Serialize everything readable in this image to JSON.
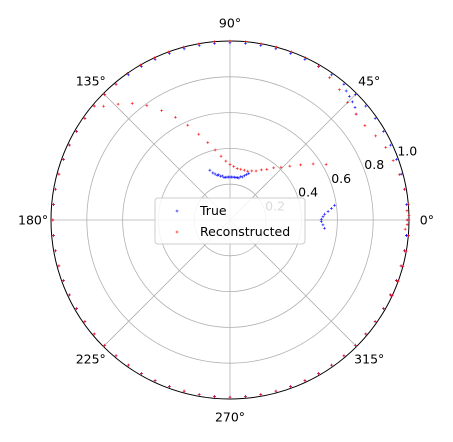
{
  "chart_data": {
    "type": "scatter",
    "projection": "polar",
    "title": "",
    "rlim": [
      0,
      1.0
    ],
    "radial_ticks": [
      {
        "value": 0.2,
        "label": "0.2"
      },
      {
        "value": 0.4,
        "label": "0.4"
      },
      {
        "value": 0.6,
        "label": "0.6"
      },
      {
        "value": 0.8,
        "label": "0.8"
      },
      {
        "value": 1.0,
        "label": "1.0"
      }
    ],
    "angular_ticks": [
      {
        "deg": 0,
        "label": "0°"
      },
      {
        "deg": 45,
        "label": "45°"
      },
      {
        "deg": 90,
        "label": "90°"
      },
      {
        "deg": 135,
        "label": "135°"
      },
      {
        "deg": 180,
        "label": "180°"
      },
      {
        "deg": 225,
        "label": "225°"
      },
      {
        "deg": 270,
        "label": "270°"
      },
      {
        "deg": 315,
        "label": "315°"
      }
    ],
    "grid": true,
    "legend": {
      "position": "center",
      "entries": [
        "True",
        "Reconstructed"
      ]
    },
    "series": [
      {
        "name": "True",
        "color": "#0000ff",
        "marker": "+",
        "theta_deg": [
          -25,
          -20,
          -15,
          -10,
          -5,
          0,
          5,
          10,
          15,
          20,
          25,
          30,
          35,
          40,
          45,
          50,
          55,
          60,
          65,
          70,
          75,
          80,
          85,
          90,
          95,
          100,
          105,
          110,
          115,
          120,
          125,
          130,
          135,
          140,
          145,
          150,
          155,
          160,
          165,
          170,
          175,
          180,
          185,
          190,
          195,
          200,
          205,
          210,
          215,
          220,
          225,
          230,
          235,
          240,
          245,
          250,
          255,
          260,
          265,
          270,
          275,
          280,
          285,
          290,
          295,
          300,
          305,
          310,
          315,
          320,
          325,
          330,
          335,
          340,
          345,
          350,
          355,
          355,
          357,
          359,
          0.5,
          2,
          3.5,
          5,
          6.5,
          8,
          40,
          42,
          44,
          46,
          48,
          68,
          70,
          72,
          74,
          76,
          78,
          80,
          82,
          84,
          86,
          88,
          90,
          92,
          94,
          96,
          98,
          100,
          102,
          104,
          106,
          108,
          110,
          112
        ],
        "r": [
          0.99,
          0.99,
          0.99,
          0.99,
          0.99,
          0.99,
          0.99,
          0.99,
          0.99,
          0.99,
          0.99,
          0.99,
          0.99,
          0.99,
          0.99,
          0.99,
          0.99,
          0.99,
          0.99,
          0.99,
          0.99,
          0.99,
          0.99,
          0.99,
          0.99,
          0.99,
          0.99,
          0.99,
          0.99,
          0.99,
          0.99,
          0.99,
          0.99,
          0.99,
          0.99,
          0.99,
          0.99,
          0.99,
          0.99,
          0.99,
          0.99,
          0.99,
          0.99,
          0.99,
          0.99,
          0.99,
          0.99,
          0.99,
          0.99,
          0.99,
          0.99,
          0.99,
          0.99,
          0.99,
          0.99,
          0.99,
          0.99,
          0.99,
          0.99,
          0.99,
          0.99,
          0.99,
          0.99,
          0.99,
          0.99,
          0.99,
          0.99,
          0.99,
          0.99,
          0.99,
          0.99,
          0.99,
          0.99,
          0.99,
          0.99,
          0.99,
          0.99,
          0.53,
          0.52,
          0.51,
          0.51,
          0.52,
          0.53,
          0.55,
          0.57,
          0.59,
          0.92,
          0.94,
          0.95,
          0.96,
          0.97,
          0.28,
          0.27,
          0.26,
          0.25,
          0.25,
          0.24,
          0.24,
          0.24,
          0.24,
          0.24,
          0.24,
          0.24,
          0.24,
          0.24,
          0.24,
          0.24,
          0.25,
          0.25,
          0.26,
          0.26,
          0.27,
          0.28,
          0.3
        ]
      },
      {
        "name": "Reconstructed",
        "color": "#ff0000",
        "marker": "+",
        "theta_deg": [
          -25,
          -20,
          -15,
          -10,
          -5,
          0,
          5,
          10,
          15,
          20,
          25,
          30,
          35,
          40,
          45,
          50,
          55,
          60,
          65,
          70,
          75,
          80,
          85,
          90,
          95,
          100,
          105,
          110,
          115,
          120,
          125,
          130,
          135,
          140,
          145,
          150,
          155,
          160,
          165,
          170,
          175,
          180,
          185,
          190,
          195,
          200,
          205,
          210,
          215,
          220,
          225,
          230,
          235,
          240,
          245,
          250,
          255,
          260,
          265,
          270,
          275,
          280,
          285,
          290,
          295,
          300,
          305,
          310,
          315,
          320,
          325,
          330,
          335,
          340,
          345,
          350,
          355,
          -3,
          -1.5,
          0,
          1.5,
          3,
          30,
          34,
          38,
          42,
          46,
          50,
          54,
          58,
          62,
          66,
          70,
          74,
          78,
          82,
          86,
          90,
          94,
          98,
          102,
          106,
          110,
          114,
          118,
          122,
          126,
          130,
          134,
          138
        ],
        "r": [
          1.0,
          1.0,
          1.0,
          1.0,
          1.0,
          0.99,
          1.0,
          0.99,
          0.98,
          0.97,
          0.96,
          0.94,
          0.92,
          0.92,
          0.93,
          0.95,
          0.97,
          0.99,
          1.0,
          1.0,
          1.0,
          1.0,
          1.0,
          1.0,
          1.0,
          1.0,
          1.0,
          1.0,
          1.0,
          1.0,
          1.0,
          0.99,
          0.99,
          0.99,
          0.99,
          0.99,
          0.99,
          0.99,
          0.99,
          0.99,
          0.99,
          0.99,
          0.99,
          0.99,
          0.99,
          0.99,
          0.99,
          0.99,
          0.99,
          0.99,
          0.99,
          0.99,
          0.99,
          0.99,
          0.99,
          0.99,
          0.99,
          0.99,
          0.99,
          0.99,
          0.99,
          0.99,
          0.99,
          0.99,
          0.99,
          0.99,
          0.99,
          0.99,
          0.99,
          0.99,
          0.99,
          0.99,
          0.99,
          0.99,
          0.99,
          0.99,
          1.0,
          0.98,
          0.99,
          1.0,
          1.0,
          0.99,
          0.62,
          0.56,
          0.5,
          0.45,
          0.41,
          0.38,
          0.35,
          0.33,
          0.31,
          0.3,
          0.29,
          0.29,
          0.29,
          0.29,
          0.3,
          0.31,
          0.33,
          0.36,
          0.4,
          0.45,
          0.51,
          0.58,
          0.65,
          0.72,
          0.79,
          0.85,
          0.9,
          0.95
        ]
      }
    ]
  }
}
